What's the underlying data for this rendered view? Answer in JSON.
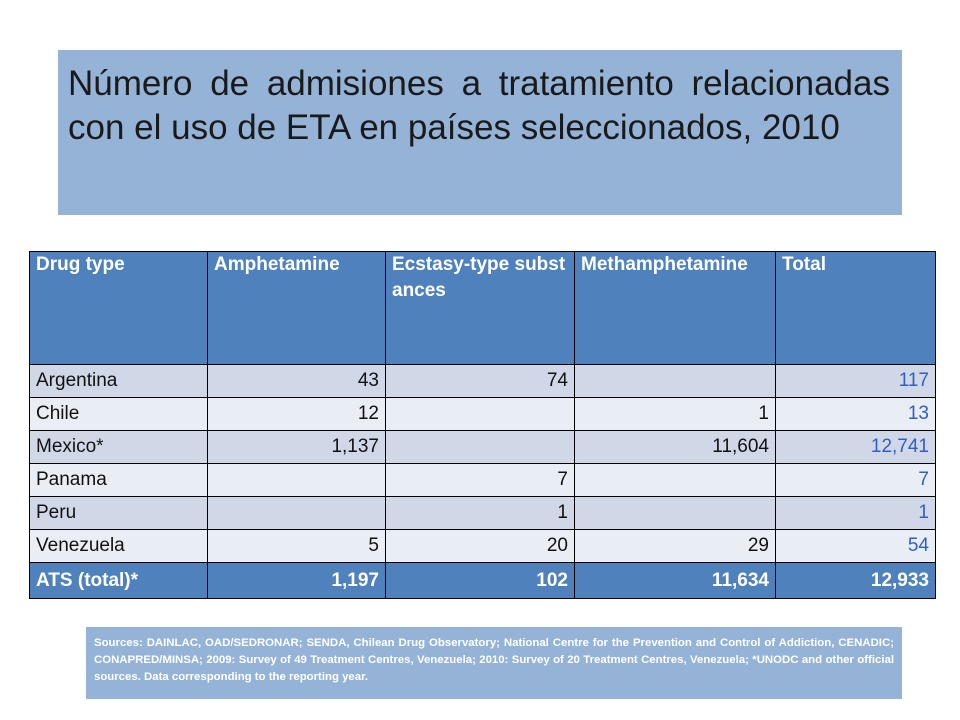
{
  "title": "Número de admisiones a tratamiento relacionadas con el uso de ETA en países seleccionados, 2010",
  "table": {
    "headers": [
      "Drug type",
      "Amphetamine",
      "Ecstasy-type substances",
      "Methamphetamine",
      "Total"
    ],
    "rows": [
      {
        "country": "Argentina",
        "amphetamine": "43",
        "ecstasy": "74",
        "methamphetamine": "",
        "total": "117"
      },
      {
        "country": "Chile",
        "amphetamine": "12",
        "ecstasy": "",
        "methamphetamine": "1",
        "total": "13"
      },
      {
        "country": "Mexico*",
        "amphetamine": "1,137",
        "ecstasy": "",
        "methamphetamine": "11,604",
        "total": "12,741"
      },
      {
        "country": "Panama",
        "amphetamine": "",
        "ecstasy": "7",
        "methamphetamine": "",
        "total": "7"
      },
      {
        "country": "Peru",
        "amphetamine": "",
        "ecstasy": "1",
        "methamphetamine": "",
        "total": "1"
      },
      {
        "country": "Venezuela",
        "amphetamine": "5",
        "ecstasy": "20",
        "methamphetamine": "29",
        "total": "54"
      }
    ],
    "summary": {
      "country": "ATS (total)*",
      "amphetamine": "1,197",
      "ecstasy": "102",
      "methamphetamine": "11,634",
      "total": "12,933"
    }
  },
  "sources": "Sources: DAINLAC, OAD/SEDRONAR; SENDA, Chilean Drug Observatory; National Centre for the Prevention and Control of Addiction, CENADIC; CONAPRED/MINSA;  2009: Survey of 49 Treatment Centres, Venezuela; 2010: Survey of 20 Treatment Centres, Venezuela; *UNODC and other official sources. Data corresponding to the reporting year.",
  "colors": {
    "title_bg": "#95b3d7",
    "header_bg": "#4f81bd",
    "row_odd": "#d0d8e8",
    "row_even": "#e9edf4",
    "total_text": "#2f5fc4"
  }
}
